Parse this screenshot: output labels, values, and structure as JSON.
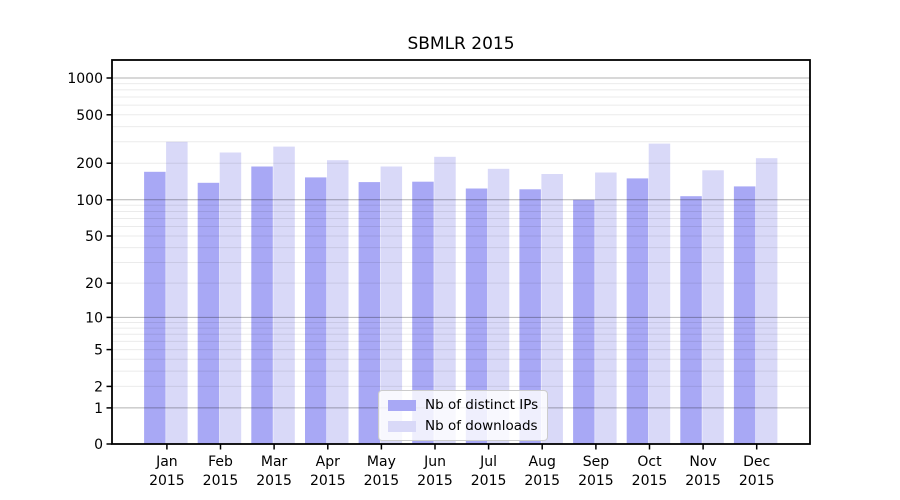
{
  "figure": {
    "title": "SBMLR 2015"
  },
  "colors": {
    "distinct_ips": "#a8a8f5",
    "downloads": "#d9d9f8",
    "grid_major": "rgba(0,0,0,0.30)",
    "grid_minor": "rgba(0,0,0,0.08)",
    "frame": "#000000",
    "text": "#000000",
    "legend_border": "#cccccc"
  },
  "legend": {
    "items": [
      {
        "label": "Nb of distinct IPs",
        "color_key": "distinct_ips"
      },
      {
        "label": "Nb of downloads",
        "color_key": "downloads"
      }
    ]
  },
  "x_axis": {
    "months": [
      "Jan",
      "Feb",
      "Mar",
      "Apr",
      "May",
      "Jun",
      "Jul",
      "Aug",
      "Sep",
      "Oct",
      "Nov",
      "Dec"
    ],
    "year": "2015"
  },
  "y_axis": {
    "ticks": [
      0,
      1,
      2,
      5,
      10,
      20,
      50,
      100,
      200,
      500,
      1000
    ],
    "scale": "log1p"
  },
  "chart_data": {
    "type": "bar",
    "title": "SBMLR 2015",
    "categories": [
      "Jan 2015",
      "Feb 2015",
      "Mar 2015",
      "Apr 2015",
      "May 2015",
      "Jun 2015",
      "Jul 2015",
      "Aug 2015",
      "Sep 2015",
      "Oct 2015",
      "Nov 2015",
      "Dec 2015"
    ],
    "series": [
      {
        "name": "Nb of distinct IPs",
        "color_key": "distinct_ips",
        "values": [
          170,
          138,
          188,
          153,
          140,
          141,
          124,
          122,
          100,
          150,
          107,
          129
        ]
      },
      {
        "name": "Nb of downloads",
        "color_key": "downloads",
        "values": [
          300,
          245,
          274,
          212,
          188,
          226,
          180,
          163,
          168,
          290,
          175,
          220
        ]
      }
    ],
    "xlabel": "",
    "ylabel": "",
    "y_ticks": [
      0,
      1,
      2,
      5,
      10,
      20,
      50,
      100,
      200,
      500,
      1000
    ],
    "y_scale": "log1p",
    "ylim": [
      0,
      1400
    ],
    "grid": true,
    "grid_on_top": true,
    "legend_position": "lower center"
  }
}
